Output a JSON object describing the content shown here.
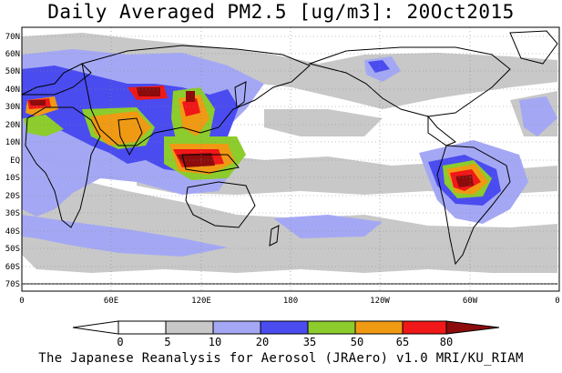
{
  "title": "Daily Averaged PM2.5 [ug/m3]: 20Oct2015",
  "credit": "The Japanese Reanalysis for Aerosol (JRAero) v1.0 MRI/KU_RIAM",
  "lat_labels": [
    "70N",
    "60N",
    "50N",
    "40N",
    "30N",
    "20N",
    "10N",
    "EQ",
    "10S",
    "20S",
    "30S",
    "40S",
    "50S",
    "60S",
    "70S"
  ],
  "lon_labels": [
    "0",
    "60E",
    "120E",
    "180",
    "120W",
    "60W",
    "0"
  ],
  "legend": {
    "ticks": [
      "0",
      "5",
      "10",
      "20",
      "35",
      "50",
      "65",
      "80"
    ],
    "colors": [
      "#ffffff",
      "#c8c8c8",
      "#a4a8f4",
      "#4a4cf0",
      "#8ccc2c",
      "#f09a14",
      "#f01818",
      "#8c0c0c"
    ]
  }
}
